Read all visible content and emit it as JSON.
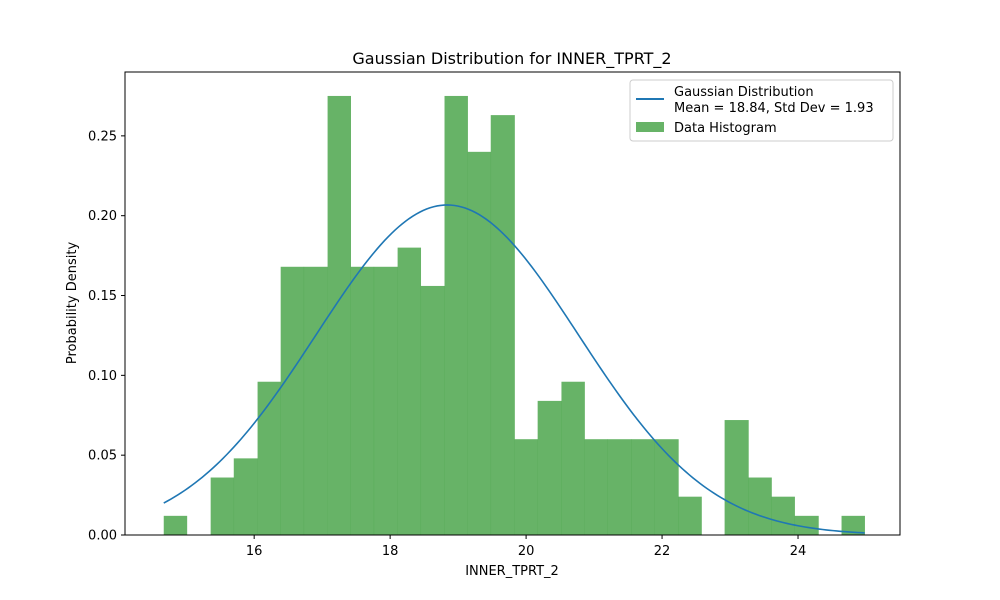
{
  "chart_data": {
    "type": "bar",
    "title": "Gaussian Distribution for INNER_TPRT_2",
    "xlabel": "INNER_TPRT_2",
    "ylabel": "Probability Density",
    "xlim": [
      14.1,
      25.5
    ],
    "ylim": [
      0,
      0.29
    ],
    "xticks": [
      16,
      18,
      20,
      22,
      24
    ],
    "yticks": [
      0.0,
      0.05,
      0.1,
      0.15,
      0.2,
      0.25
    ],
    "ytick_labels": [
      "0.00",
      "0.05",
      "0.10",
      "0.15",
      "0.20",
      "0.25"
    ],
    "grid": false,
    "legend_position": "top-right",
    "histogram": {
      "name": "Data Histogram",
      "color": "#4ca64c",
      "bin_edges": [
        14.67,
        15.01,
        15.36,
        15.7,
        16.05,
        16.39,
        16.73,
        17.08,
        17.42,
        17.76,
        18.11,
        18.45,
        18.8,
        19.14,
        19.48,
        19.83,
        20.17,
        20.52,
        20.86,
        21.2,
        21.55,
        21.89,
        22.24,
        22.58,
        22.92,
        23.27,
        23.61,
        23.95,
        24.3,
        24.64,
        24.98
      ],
      "densities": [
        0.012,
        0,
        0.036,
        0.048,
        0.096,
        0.168,
        0.168,
        0.275,
        0.168,
        0.168,
        0.18,
        0.156,
        0.275,
        0.24,
        0.263,
        0.06,
        0.084,
        0.096,
        0.06,
        0.06,
        0.06,
        0.06,
        0.024,
        0,
        0.072,
        0.036,
        0.024,
        0.012,
        0,
        0.012
      ]
    },
    "gaussian": {
      "name": "Gaussian Distribution",
      "name_line2": "Mean = 18.84, Std Dev = 1.93",
      "mean": 18.84,
      "std": 1.93,
      "x_range": [
        14.67,
        24.98
      ],
      "color": "#1f77b4"
    }
  }
}
